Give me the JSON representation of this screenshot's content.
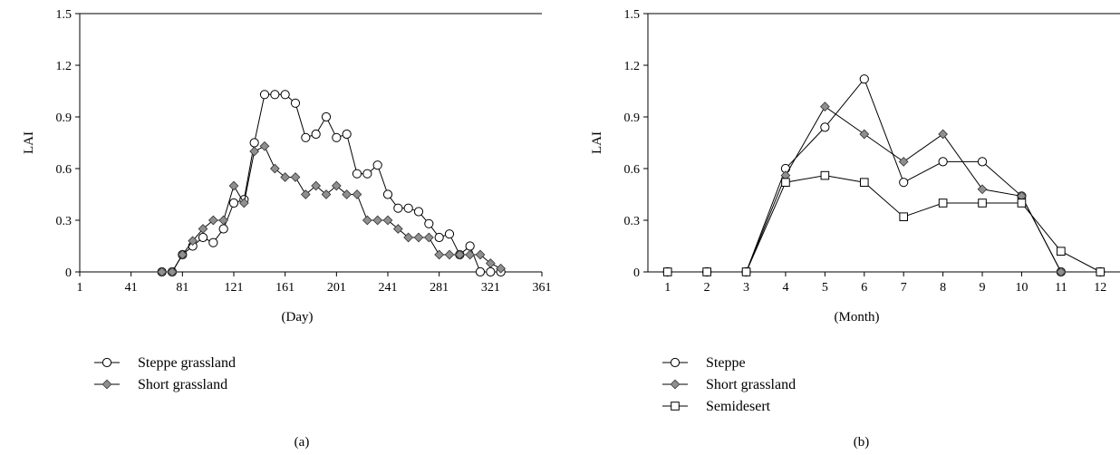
{
  "chart_data": [
    {
      "type": "line",
      "panel_label": "(a)",
      "xlabel": "(Day)",
      "ylabel": "LAI",
      "xlim": [
        1,
        361
      ],
      "ylim": [
        0,
        1.5
      ],
      "x_ticks": [
        1,
        41,
        81,
        121,
        161,
        201,
        241,
        281,
        321,
        361
      ],
      "y_ticks": [
        "0",
        "0.3",
        "0.6",
        "0.9",
        "1.2",
        "1.5"
      ],
      "legend_position": "bottom-left",
      "series": [
        {
          "name": "Steppe grassland",
          "marker": "circle",
          "x": [
            65,
            73,
            81,
            89,
            97,
            105,
            113,
            121,
            129,
            137,
            145,
            153,
            161,
            169,
            177,
            185,
            193,
            201,
            209,
            217,
            225,
            233,
            241,
            249,
            257,
            265,
            273,
            281,
            289,
            297,
            305,
            313,
            321,
            329
          ],
          "y": [
            0,
            0,
            0.1,
            0.15,
            0.2,
            0.17,
            0.25,
            0.4,
            0.42,
            0.75,
            1.03,
            1.03,
            1.03,
            0.98,
            0.78,
            0.8,
            0.9,
            0.78,
            0.8,
            0.57,
            0.57,
            0.62,
            0.45,
            0.37,
            0.37,
            0.35,
            0.28,
            0.2,
            0.22,
            0.1,
            0.15,
            0,
            0,
            0
          ]
        },
        {
          "name": "Short grassland",
          "marker": "diamond",
          "x": [
            65,
            73,
            81,
            89,
            97,
            105,
            113,
            121,
            129,
            137,
            145,
            153,
            161,
            169,
            177,
            185,
            193,
            201,
            209,
            217,
            225,
            233,
            241,
            249,
            257,
            265,
            273,
            281,
            289,
            297,
            305,
            313,
            321,
            329
          ],
          "y": [
            0,
            0,
            0.1,
            0.18,
            0.25,
            0.3,
            0.3,
            0.5,
            0.4,
            0.7,
            0.73,
            0.6,
            0.55,
            0.55,
            0.45,
            0.5,
            0.45,
            0.5,
            0.45,
            0.45,
            0.3,
            0.3,
            0.3,
            0.25,
            0.2,
            0.2,
            0.2,
            0.1,
            0.1,
            0.1,
            0.1,
            0.1,
            0.05,
            0.02
          ]
        }
      ]
    },
    {
      "type": "line",
      "panel_label": "(b)",
      "xlabel": "(Month)",
      "ylabel": "LAI",
      "xlim": [
        0.5,
        12.5
      ],
      "ylim": [
        0,
        1.5
      ],
      "x_ticks": [
        1,
        2,
        3,
        4,
        5,
        6,
        7,
        8,
        9,
        10,
        11,
        12
      ],
      "y_ticks": [
        "0",
        "0.3",
        "0.6",
        "0.9",
        "1.2",
        "1.5"
      ],
      "legend_position": "bottom-left",
      "series": [
        {
          "name": "Steppe",
          "marker": "circle",
          "x": [
            1,
            2,
            3,
            4,
            5,
            6,
            7,
            8,
            9,
            10,
            11,
            12
          ],
          "y": [
            0,
            0,
            0,
            0.6,
            0.84,
            1.12,
            0.52,
            0.64,
            0.64,
            0.44,
            0,
            0
          ]
        },
        {
          "name": "Short grassland",
          "marker": "diamond",
          "x": [
            1,
            2,
            3,
            4,
            5,
            6,
            7,
            8,
            9,
            10,
            11,
            12
          ],
          "y": [
            0,
            0,
            0,
            0.56,
            0.96,
            0.8,
            0.64,
            0.8,
            0.48,
            0.44,
            0,
            0
          ]
        },
        {
          "name": "Semidesert",
          "marker": "square",
          "x": [
            1,
            2,
            3,
            4,
            5,
            6,
            7,
            8,
            9,
            10,
            11,
            12
          ],
          "y": [
            0,
            0,
            0,
            0.52,
            0.56,
            0.52,
            0.32,
            0.4,
            0.4,
            0.4,
            0.12,
            0
          ]
        }
      ]
    }
  ]
}
